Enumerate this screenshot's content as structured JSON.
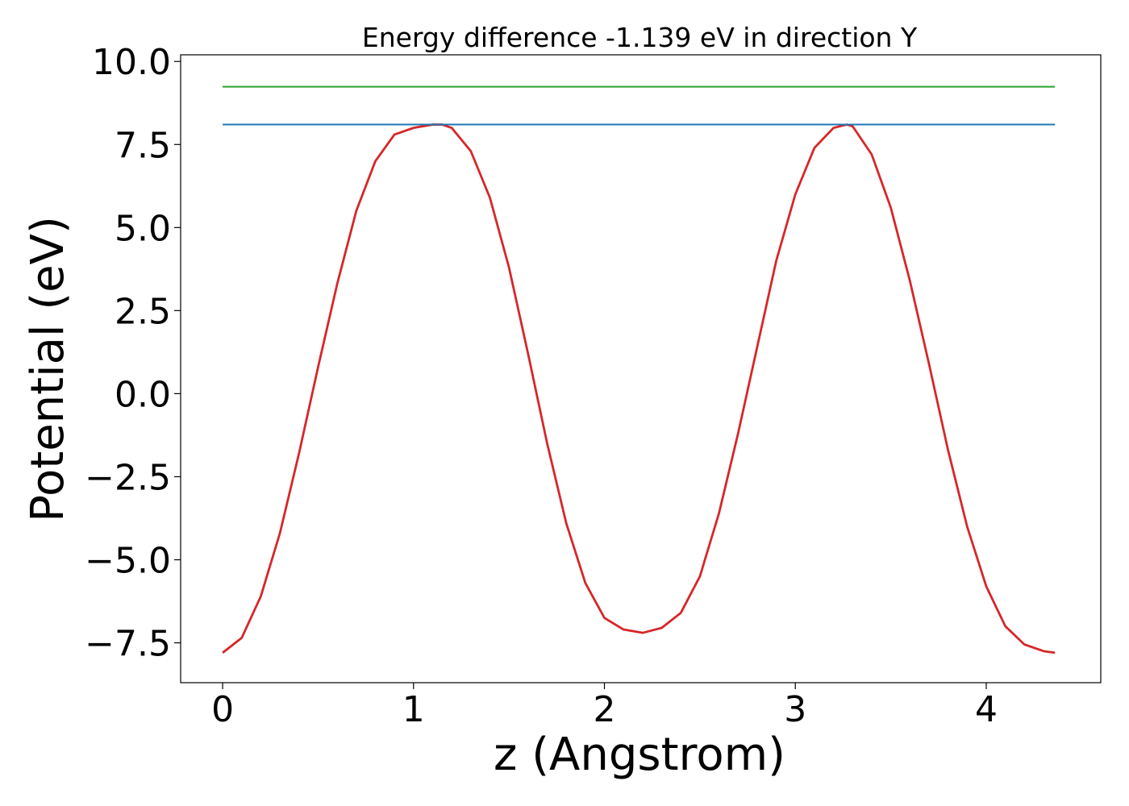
{
  "chart_data": {
    "type": "line",
    "title": "Energy difference -1.139 eV in direction Y",
    "xlabel": "z (Angstrom)",
    "ylabel": "Potential (eV)",
    "xlim": [
      -0.22,
      4.6
    ],
    "ylim": [
      -8.7,
      10.2
    ],
    "xticks": [
      0,
      1,
      2,
      3,
      4
    ],
    "xtick_labels": [
      "0",
      "1",
      "2",
      "3",
      "4"
    ],
    "yticks": [
      -7.5,
      -5.0,
      -2.5,
      0.0,
      2.5,
      5.0,
      7.5,
      10.0
    ],
    "ytick_labels": [
      "−7.5",
      "−5.0",
      "−2.5",
      "0.0",
      "2.5",
      "5.0",
      "7.5",
      "10.0"
    ],
    "grid": false,
    "colors": {
      "potential": "#d62728",
      "level_blue": "#1f77b4",
      "level_green": "#2ca02c"
    },
    "series": [
      {
        "color": "#d62728",
        "x": [
          0.0,
          0.1,
          0.2,
          0.3,
          0.4,
          0.5,
          0.6,
          0.7,
          0.8,
          0.9,
          1.0,
          1.1,
          1.15,
          1.2,
          1.3,
          1.4,
          1.5,
          1.6,
          1.7,
          1.8,
          1.9,
          2.0,
          2.1,
          2.2,
          2.3,
          2.4,
          2.5,
          2.6,
          2.7,
          2.8,
          2.9,
          3.0,
          3.1,
          3.2,
          3.27,
          3.3,
          3.4,
          3.5,
          3.6,
          3.7,
          3.8,
          3.9,
          4.0,
          4.1,
          4.2,
          4.3,
          4.36
        ],
        "y": [
          -7.8,
          -7.35,
          -6.1,
          -4.2,
          -1.8,
          0.8,
          3.3,
          5.5,
          7.0,
          7.8,
          8.0,
          8.1,
          8.1,
          8.0,
          7.3,
          5.9,
          3.8,
          1.2,
          -1.5,
          -3.9,
          -5.7,
          -6.75,
          -7.1,
          -7.2,
          -7.05,
          -6.6,
          -5.5,
          -3.6,
          -1.2,
          1.4,
          4.0,
          6.0,
          7.4,
          8.0,
          8.1,
          8.05,
          7.2,
          5.6,
          3.4,
          0.9,
          -1.7,
          -4.0,
          -5.8,
          -7.0,
          -7.55,
          -7.75,
          -7.8
        ]
      },
      {
        "color": "#1f77b4",
        "x": [
          0.0,
          4.36
        ],
        "y": [
          8.1,
          8.1
        ]
      },
      {
        "color": "#2ca02c",
        "x": [
          0.0,
          4.36
        ],
        "y": [
          9.24,
          9.24
        ]
      }
    ]
  }
}
